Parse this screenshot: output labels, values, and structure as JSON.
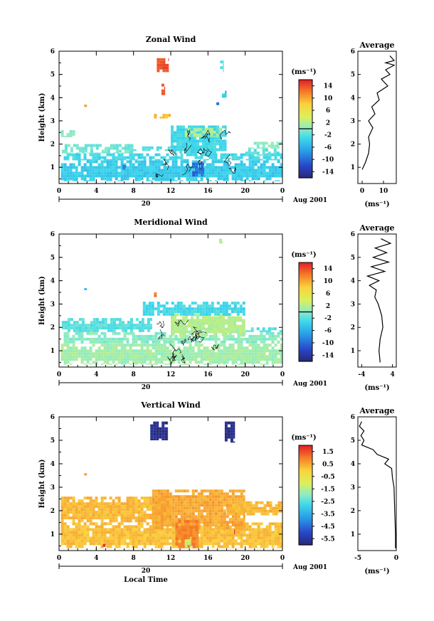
{
  "figure": {
    "date_label": "Aug 2001",
    "day_label": "20",
    "x_label": "Local Time",
    "x_ticks": [
      "0",
      "4",
      "8",
      "12",
      "16",
      "20",
      "0"
    ],
    "y_label": "Height (km)",
    "y_ticks": [
      "1",
      "2",
      "3",
      "4",
      "5",
      "6"
    ],
    "unit_label": "(ms⁻¹)"
  },
  "chart_data": [
    {
      "type": "heatmap",
      "title": "Zonal Wind",
      "xlabel": "",
      "ylabel": "Height (km)",
      "xlim": [
        0,
        24
      ],
      "ylim": [
        0.3,
        6
      ],
      "colorbar": {
        "label": "(ms⁻¹)",
        "range": [
          -16,
          16
        ],
        "ticks": [
          "14",
          "10",
          "6",
          "2",
          "-2",
          "-6",
          "-10",
          "-14"
        ],
        "tick_values": [
          14,
          10,
          6,
          2,
          -2,
          -6,
          -10,
          -14
        ],
        "divider_value": 0
      },
      "profile": {
        "title": "Average",
        "xlabel": "(ms⁻¹)",
        "x_ticks": [
          "0",
          "10"
        ],
        "x_tick_values": [
          0,
          10
        ],
        "xlim": [
          -2,
          16
        ],
        "heights": [
          0.9,
          1.2,
          1.6,
          2.0,
          2.3,
          2.7,
          3.0,
          3.3,
          3.6,
          3.9,
          4.2,
          4.5,
          4.8,
          5.0,
          5.2,
          5.4,
          5.5,
          5.6,
          5.8
        ],
        "values": [
          0.0,
          1.5,
          3.0,
          3.5,
          3.0,
          5.0,
          3.0,
          6.0,
          4.5,
          8.0,
          7.0,
          12.0,
          9.0,
          13.0,
          11.0,
          15.0,
          11.0,
          15.0,
          13.0
        ]
      },
      "regions": [
        {
          "x": [
            0.2,
            24
          ],
          "y": [
            0.4,
            1.3
          ],
          "value": -4
        },
        {
          "x": [
            0.5,
            24
          ],
          "y": [
            1.3,
            1.6
          ],
          "value": -3
        },
        {
          "x": [
            0.3,
            8
          ],
          "y": [
            1.6,
            2.0
          ],
          "value": -1
        },
        {
          "x": [
            8,
            12
          ],
          "y": [
            1.7,
            1.9
          ],
          "value": -2
        },
        {
          "x": [
            12,
            18
          ],
          "y": [
            1.6,
            2.8
          ],
          "value": -3
        },
        {
          "x": [
            13.5,
            17.5
          ],
          "y": [
            2.3,
            2.7
          ],
          "value": 2
        },
        {
          "x": [
            20,
            24
          ],
          "y": [
            1.8,
            2.1
          ],
          "value": 0
        },
        {
          "x": [
            20,
            24
          ],
          "y": [
            1.5,
            1.8
          ],
          "value": -2
        },
        {
          "x": [
            0.2,
            2
          ],
          "y": [
            2.3,
            2.6
          ],
          "value": 0
        },
        {
          "x": [
            10.2,
            12
          ],
          "y": [
            3.1,
            3.3
          ],
          "value": 9
        },
        {
          "x": [
            2.7,
            3.0
          ],
          "y": [
            3.6,
            3.7
          ],
          "value": 10
        },
        {
          "x": [
            10.5,
            11.8
          ],
          "y": [
            5.1,
            5.7
          ],
          "value": 14
        },
        {
          "x": [
            11.0,
            11.4
          ],
          "y": [
            4.1,
            4.6
          ],
          "value": 14
        },
        {
          "x": [
            17.3,
            17.7
          ],
          "y": [
            5.0,
            5.6
          ],
          "value": -2
        },
        {
          "x": [
            17.5,
            18.0
          ],
          "y": [
            4.0,
            4.3
          ],
          "value": -4
        },
        {
          "x": [
            16.9,
            17.2
          ],
          "y": [
            3.6,
            3.8
          ],
          "value": -10
        },
        {
          "x": [
            14.3,
            15.6
          ],
          "y": [
            0.6,
            1.2
          ],
          "value": -10
        },
        {
          "x": [
            6.8,
            7.2
          ],
          "y": [
            0.9,
            1.1
          ],
          "value": -9
        }
      ]
    },
    {
      "type": "heatmap",
      "title": "Meridional Wind",
      "xlabel": "",
      "ylabel": "Height (km)",
      "xlim": [
        0,
        24
      ],
      "ylim": [
        0.3,
        6
      ],
      "colorbar": {
        "label": "(ms⁻¹)",
        "range": [
          -16,
          16
        ],
        "ticks": [
          "14",
          "10",
          "6",
          "2",
          "-2",
          "-6",
          "-10",
          "-14"
        ],
        "tick_values": [
          14,
          10,
          6,
          2,
          -2,
          -6,
          -10,
          -14
        ],
        "divider_value": 0
      },
      "profile": {
        "title": "Average",
        "xlabel": "(ms⁻¹)",
        "x_ticks": [
          "-4",
          "4"
        ],
        "x_tick_values": [
          -4,
          4
        ],
        "xlim": [
          -5,
          5
        ],
        "heights": [
          0.5,
          1.0,
          1.5,
          2.0,
          2.5,
          3.0,
          3.3,
          3.6,
          3.8,
          4.0,
          4.2,
          4.4,
          4.6,
          4.8,
          5.0,
          5.2,
          5.4,
          5.6,
          5.8
        ],
        "values": [
          0.8,
          0.5,
          0.8,
          1.5,
          1.2,
          0.3,
          -0.6,
          -0.2,
          -2.0,
          0.5,
          -2.5,
          2.0,
          -1.5,
          3.0,
          -1.0,
          2.5,
          -0.5,
          3.5,
          1.0
        ]
      },
      "regions": [
        {
          "x": [
            0.2,
            24
          ],
          "y": [
            0.4,
            1.3
          ],
          "value": 1
        },
        {
          "x": [
            0.5,
            24
          ],
          "y": [
            1.3,
            1.8
          ],
          "value": 0
        },
        {
          "x": [
            0.3,
            10
          ],
          "y": [
            1.8,
            2.4
          ],
          "value": -2
        },
        {
          "x": [
            12,
            20
          ],
          "y": [
            1.6,
            2.6
          ],
          "value": 2
        },
        {
          "x": [
            9,
            20
          ],
          "y": [
            2.5,
            3.1
          ],
          "value": -3
        },
        {
          "x": [
            20,
            24
          ],
          "y": [
            1.8,
            2.0
          ],
          "value": -2
        },
        {
          "x": [
            10.2,
            10.5
          ],
          "y": [
            3.3,
            3.5
          ],
          "value": 12
        },
        {
          "x": [
            2.7,
            3.0
          ],
          "y": [
            3.6,
            3.8
          ],
          "value": -6
        },
        {
          "x": [
            17.2,
            17.6
          ],
          "y": [
            5.6,
            5.8
          ],
          "value": 2
        }
      ]
    },
    {
      "type": "heatmap",
      "title": "Vertical Wind",
      "xlabel": "Local Time",
      "ylabel": "Height (km)",
      "xlim": [
        0,
        24
      ],
      "ylim": [
        0.3,
        6
      ],
      "colorbar": {
        "label": "(ms⁻¹)",
        "range": [
          -6,
          2
        ],
        "ticks": [
          "1.5",
          "0.5",
          "-0.5",
          "-1.5",
          "-2.5",
          "-3.5",
          "-4.5",
          "-5.5"
        ],
        "tick_values": [
          1.5,
          0.5,
          -0.5,
          -1.5,
          -2.5,
          -3.5,
          -4.5,
          -5.5
        ],
        "divider_value": null
      },
      "profile": {
        "title": "Average",
        "xlabel": "(ms⁻¹)",
        "x_ticks": [
          "-5",
          "0"
        ],
        "x_tick_values": [
          -5,
          0
        ],
        "xlim": [
          -5,
          0
        ],
        "heights": [
          0.4,
          1.0,
          2.0,
          3.0,
          3.4,
          3.8,
          4.0,
          4.2,
          4.4,
          4.6,
          4.8,
          5.0,
          5.2,
          5.4,
          5.6,
          5.8
        ],
        "values": [
          -0.1,
          -0.1,
          -0.2,
          -0.3,
          -0.5,
          -0.6,
          -1.5,
          -1.0,
          -2.5,
          -3.0,
          -4.5,
          -4.2,
          -4.6,
          -4.2,
          -4.8,
          -4.5
        ]
      },
      "regions": [
        {
          "x": [
            0.2,
            24
          ],
          "y": [
            0.4,
            1.5
          ],
          "value": 0.2
        },
        {
          "x": [
            0.2,
            12
          ],
          "y": [
            1.5,
            2.6
          ],
          "value": 0.3
        },
        {
          "x": [
            10,
            20
          ],
          "y": [
            1.2,
            2.9
          ],
          "value": 0.5
        },
        {
          "x": [
            18,
            24
          ],
          "y": [
            1.8,
            2.4
          ],
          "value": 0.3
        },
        {
          "x": [
            12.5,
            15
          ],
          "y": [
            0.4,
            1.6
          ],
          "value": 0.9
        },
        {
          "x": [
            13.5,
            14.2
          ],
          "y": [
            0.4,
            0.9
          ],
          "value": -1.2
        },
        {
          "x": [
            18.5,
            18.9
          ],
          "y": [
            1.0,
            1.2
          ],
          "value": 1.8
        },
        {
          "x": [
            4.7,
            5.0
          ],
          "y": [
            0.4,
            0.7
          ],
          "value": 1.8
        },
        {
          "x": [
            9.8,
            11.7
          ],
          "y": [
            5.0,
            5.8
          ],
          "value": -5.8
        },
        {
          "x": [
            17.8,
            18.9
          ],
          "y": [
            4.9,
            5.8
          ],
          "value": -5.8
        },
        {
          "x": [
            2.7,
            3.0
          ],
          "y": [
            3.5,
            3.6
          ],
          "value": 0.5
        }
      ]
    }
  ]
}
